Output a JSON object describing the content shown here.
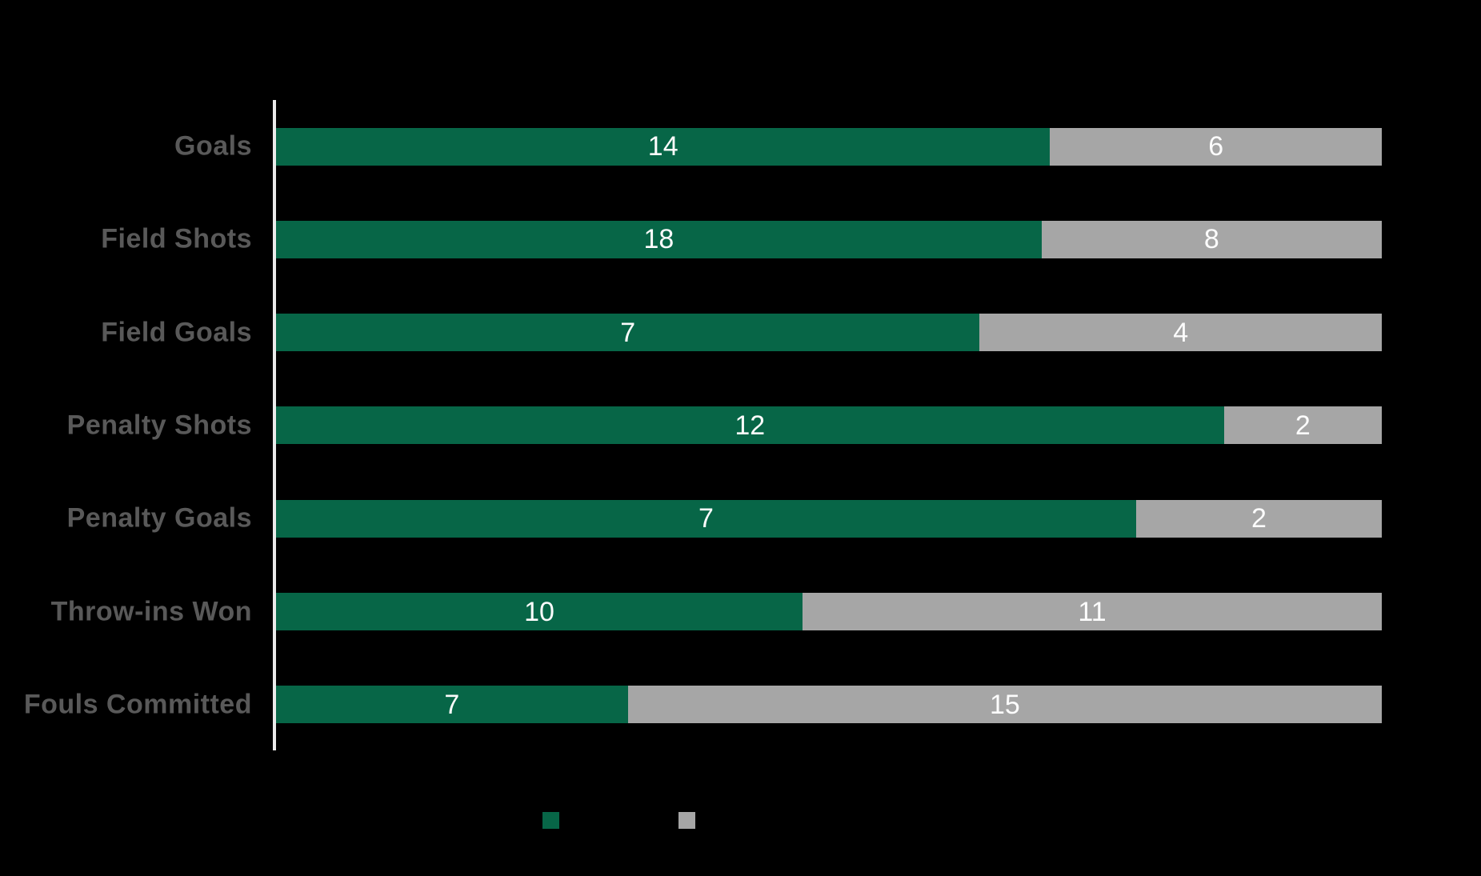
{
  "colors": {
    "background": "#000000",
    "green": "#076647",
    "gray": "#a6a6a6",
    "category_label": "#595959",
    "value_text": "#fcfcfc",
    "axis_line": "#ebebeb"
  },
  "chart_data": {
    "type": "bar",
    "variant": "100%-stacked",
    "orientation": "horizontal",
    "title": "",
    "xlabel": "",
    "ylabel": "",
    "grid": false,
    "legend_position": "bottom",
    "data_labels": "white numbers centered in each segment",
    "categories": [
      "Goals",
      "Field Shots",
      "Field Goals",
      "Penalty Shots",
      "Penalty Goals",
      "Throw-ins Won",
      "Fouls Committed"
    ],
    "series": [
      {
        "name": "green",
        "color": "#076647",
        "values": [
          14,
          18,
          7,
          12,
          7,
          10,
          7
        ]
      },
      {
        "name": "gray",
        "color": "#a6a6a6",
        "values": [
          6,
          8,
          4,
          2,
          2,
          11,
          15
        ]
      }
    ]
  },
  "legend": {
    "swatches": [
      {
        "icon": "green-square-swatch",
        "color": "#076647",
        "label": ""
      },
      {
        "icon": "gray-square-swatch",
        "color": "#a6a6a6",
        "label": ""
      }
    ]
  }
}
